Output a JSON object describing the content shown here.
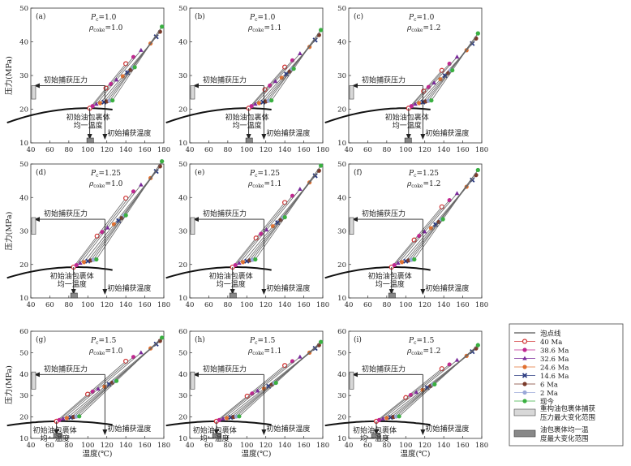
{
  "figure": {
    "y_axis_label": "压力(MPa)",
    "x_axis_label": "温度(℃)",
    "label_trap_pressure": "初始捕获压力",
    "label_trap_temperature": "初始捕获温度",
    "label_homog_temp_line1": "初始油包裹体",
    "label_homog_temp_line2": "均一温度"
  },
  "legend": {
    "items": [
      {
        "label": "泡点线",
        "symbol": "line",
        "color": "#555555"
      },
      {
        "label": "40 Ma",
        "symbol": "circle-open",
        "color": "#d03030"
      },
      {
        "label": "38.6 Ma",
        "symbol": "circle",
        "color": "#c02890"
      },
      {
        "label": "32.6 Ma",
        "symbol": "triangle",
        "color": "#7a2a9a"
      },
      {
        "label": "24.6 Ma",
        "symbol": "circle",
        "color": "#e07030"
      },
      {
        "label": "14.6 Ma",
        "symbol": "x",
        "color": "#2a3a80"
      },
      {
        "label": "6 Ma",
        "symbol": "circle",
        "color": "#7a3a2a"
      },
      {
        "label": "2 Ma",
        "symbol": "circle",
        "color": "#9aa8d8"
      },
      {
        "label": "现今",
        "symbol": "circle",
        "color": "#3ab040"
      }
    ],
    "box_light_line1": "重构油包裹体捕获",
    "box_light_line2": "压力最大变化范围",
    "box_dark_line1": "油包裹体均一温",
    "box_dark_line2": "度最大变化范围"
  },
  "chart_data": [
    {
      "panel": "(a)",
      "pc": "1.0",
      "rho": "1.0",
      "type": "line",
      "xlim": [
        40,
        180
      ],
      "ylim": [
        10,
        50
      ],
      "xticks": [
        40,
        60,
        80,
        100,
        120,
        140,
        160,
        180
      ],
      "yticks": [
        10,
        20,
        30,
        40,
        50
      ],
      "th": 102,
      "ph": 20.3,
      "tt": 118,
      "pt": 27,
      "bubble_start": [
        15,
        16
      ],
      "isochore_top": [
        178,
        44.5
      ],
      "min_band": [
        23,
        27
      ],
      "hom_band": [
        99,
        106
      ]
    },
    {
      "panel": "(b)",
      "pc": "1.0",
      "rho": "1.1",
      "type": "line",
      "xlim": [
        40,
        180
      ],
      "ylim": [
        10,
        50
      ],
      "xticks": [
        40,
        60,
        80,
        100,
        120,
        140,
        160,
        180
      ],
      "yticks": [
        10,
        20,
        30,
        40,
        50
      ],
      "th": 102,
      "ph": 20.3,
      "tt": 118,
      "pt": 27,
      "bubble_start": [
        15,
        16
      ],
      "isochore_top": [
        178,
        43.5
      ],
      "min_band": [
        23,
        27
      ],
      "hom_band": [
        99,
        106
      ]
    },
    {
      "panel": "(c)",
      "pc": "1.0",
      "rho": "1.2",
      "type": "line",
      "xlim": [
        40,
        180
      ],
      "ylim": [
        10,
        50
      ],
      "xticks": [
        40,
        60,
        80,
        100,
        120,
        140,
        160,
        180
      ],
      "yticks": [
        10,
        20,
        30,
        40,
        50
      ],
      "th": 103,
      "ph": 20.3,
      "tt": 118,
      "pt": 27,
      "bubble_start": [
        15,
        16
      ],
      "isochore_top": [
        176,
        42.5
      ],
      "min_band": [
        23,
        27
      ],
      "hom_band": [
        99,
        106
      ]
    },
    {
      "panel": "(d)",
      "pc": "1.25",
      "rho": "1.0",
      "type": "line",
      "xlim": [
        40,
        180
      ],
      "ylim": [
        10,
        50
      ],
      "xticks": [
        40,
        60,
        80,
        100,
        120,
        140,
        160,
        180
      ],
      "yticks": [
        10,
        20,
        30,
        40,
        50
      ],
      "th": 85,
      "ph": 19.2,
      "tt": 118,
      "pt": 33.5,
      "bubble_start": [
        15,
        16
      ],
      "isochore_top": [
        178,
        50.8
      ],
      "min_band": [
        29,
        34
      ],
      "hom_band": [
        82,
        89
      ]
    },
    {
      "panel": "(e)",
      "pc": "1.25",
      "rho": "1.1",
      "type": "line",
      "xlim": [
        40,
        180
      ],
      "ylim": [
        10,
        50
      ],
      "xticks": [
        40,
        60,
        80,
        100,
        120,
        140,
        160,
        180
      ],
      "yticks": [
        10,
        20,
        30,
        40,
        50
      ],
      "th": 85,
      "ph": 19.2,
      "tt": 118,
      "pt": 33.5,
      "bubble_start": [
        15,
        16
      ],
      "isochore_top": [
        178,
        49.5
      ],
      "min_band": [
        29,
        34
      ],
      "hom_band": [
        82,
        89
      ]
    },
    {
      "panel": "(f)",
      "pc": "1.25",
      "rho": "1.2",
      "type": "line",
      "xlim": [
        40,
        180
      ],
      "ylim": [
        10,
        50
      ],
      "xticks": [
        40,
        60,
        80,
        100,
        120,
        140,
        160,
        180
      ],
      "yticks": [
        10,
        20,
        30,
        40,
        50
      ],
      "th": 85,
      "ph": 19.2,
      "tt": 118,
      "pt": 33.5,
      "bubble_start": [
        15,
        16
      ],
      "isochore_top": [
        176,
        48.2
      ],
      "min_band": [
        29,
        34
      ],
      "hom_band": [
        82,
        89
      ]
    },
    {
      "panel": "(g)",
      "pc": "1.5",
      "rho": "1.0",
      "type": "line",
      "xlim": [
        40,
        180
      ],
      "ylim": [
        10,
        60
      ],
      "xticks": [
        40,
        60,
        80,
        100,
        120,
        140,
        160,
        180
      ],
      "yticks": [
        10,
        20,
        30,
        40,
        50,
        60
      ],
      "th": 67,
      "ph": 18,
      "tt": 118,
      "pt": 39.8,
      "bubble_start": [
        15,
        16
      ],
      "isochore_top": [
        178,
        57
      ],
      "min_band": [
        33,
        41
      ],
      "hom_band": [
        64,
        73
      ]
    },
    {
      "panel": "(h)",
      "pc": "1.5",
      "rho": "1.1",
      "type": "line",
      "xlim": [
        40,
        180
      ],
      "ylim": [
        10,
        60
      ],
      "xticks": [
        40,
        60,
        80,
        100,
        120,
        140,
        160,
        180
      ],
      "yticks": [
        10,
        20,
        30,
        40,
        50,
        60
      ],
      "th": 68,
      "ph": 18,
      "tt": 118,
      "pt": 39.8,
      "bubble_start": [
        15,
        16
      ],
      "isochore_top": [
        178,
        55
      ],
      "min_band": [
        33,
        41
      ],
      "hom_band": [
        64,
        73
      ]
    },
    {
      "panel": "(i)",
      "pc": "1.5",
      "rho": "1.2",
      "type": "line",
      "xlim": [
        40,
        180
      ],
      "ylim": [
        10,
        60
      ],
      "xticks": [
        40,
        60,
        80,
        100,
        120,
        140,
        160,
        180
      ],
      "yticks": [
        10,
        20,
        30,
        40,
        50,
        60
      ],
      "th": 69,
      "ph": 18,
      "tt": 118,
      "pt": 39.8,
      "bubble_start": [
        15,
        16
      ],
      "isochore_top": [
        176,
        53.5
      ],
      "min_band": [
        33,
        41
      ],
      "hom_band": [
        64,
        73
      ]
    }
  ]
}
